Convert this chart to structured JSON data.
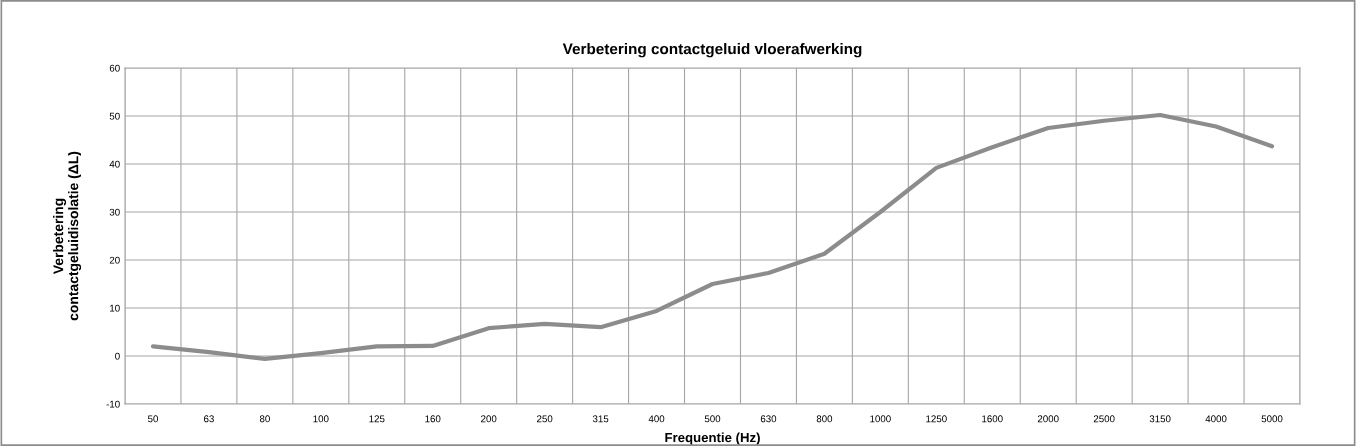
{
  "chart_data": {
    "type": "line",
    "title": "Verbetering contactgeluid vloerafwerking",
    "xlabel": "Frequentie (Hz)",
    "ylabel": "Verbetering\ncontactgeluidisolatie (ΔL)",
    "categories": [
      "50",
      "63",
      "80",
      "100",
      "125",
      "160",
      "200",
      "250",
      "315",
      "400",
      "500",
      "630",
      "800",
      "1000",
      "1250",
      "1600",
      "2000",
      "2500",
      "3150",
      "4000",
      "5000"
    ],
    "series": [
      {
        "color": "#8c8c8c",
        "values": [
          2,
          0.8,
          -0.6,
          0.6,
          2,
          2.1,
          5.8,
          6.7,
          6,
          9.4,
          15,
          17.3,
          21.3,
          30,
          39.2,
          43.5,
          47.5,
          49,
          50.2,
          47.8,
          43.7
        ]
      }
    ],
    "ylim": [
      -10,
      60
    ],
    "yticks": [
      -10,
      0,
      10,
      20,
      30,
      40,
      50,
      60
    ],
    "grid": true,
    "marker": "none",
    "line_style": "solid"
  }
}
